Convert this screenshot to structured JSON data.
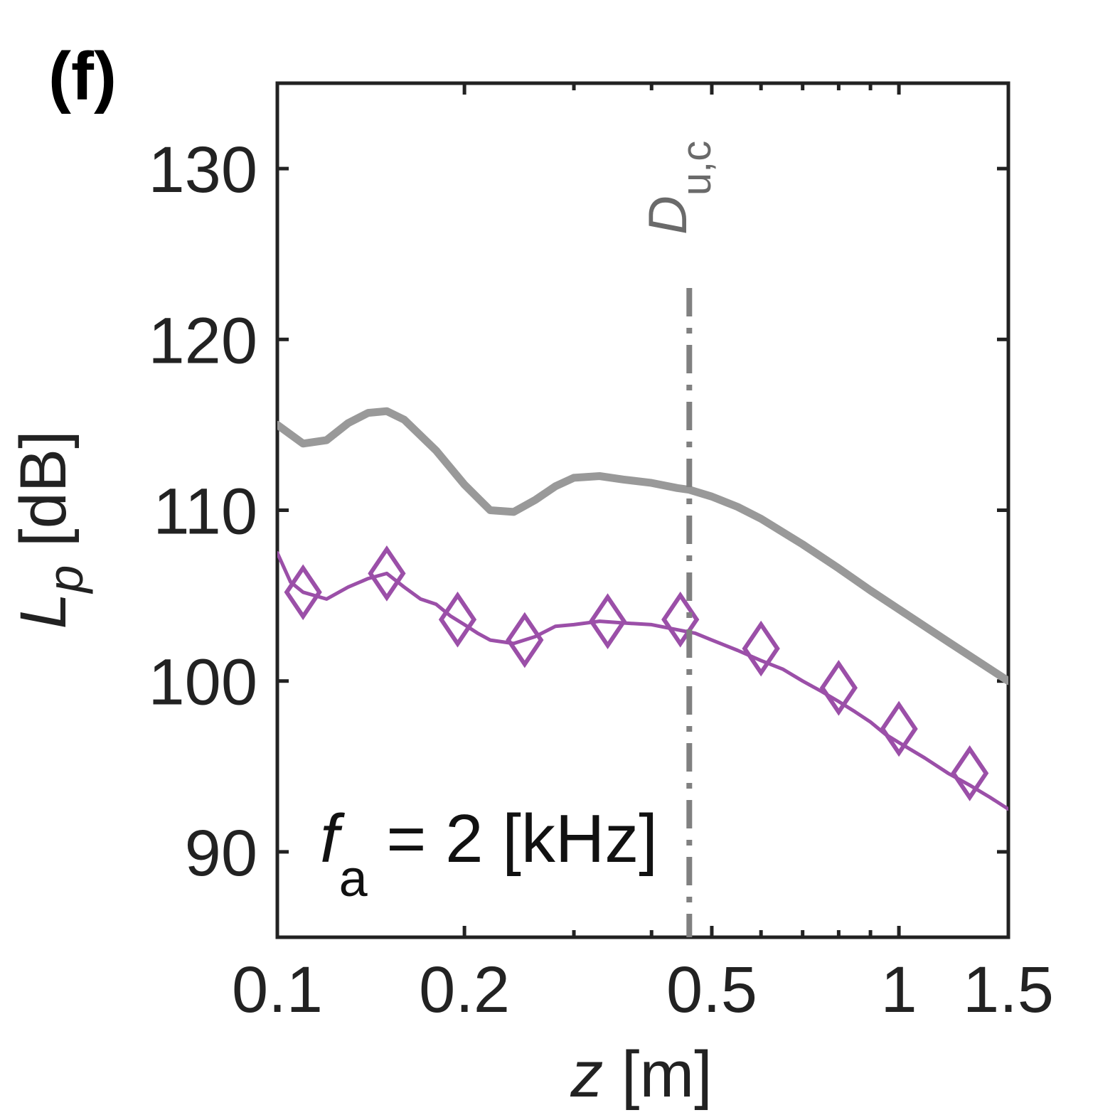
{
  "chart_data": {
    "type": "line",
    "panel_label": "(f)",
    "title": "",
    "xlabel": {
      "var": "z",
      "unit": "[m]"
    },
    "ylabel": {
      "var": "L",
      "sub": "p",
      "unit": "[dB]"
    },
    "xscale": "log",
    "xlim": [
      0.1,
      1.5
    ],
    "ylim": [
      85,
      135
    ],
    "xticks": [
      0.1,
      0.2,
      0.5,
      1,
      1.5
    ],
    "xtick_labels": [
      "0.1",
      "0.2",
      "0.5",
      "1",
      "1.5"
    ],
    "yticks": [
      90,
      100,
      110,
      120,
      130
    ],
    "ytick_labels": [
      "90",
      "100",
      "110",
      "120",
      "130"
    ],
    "minor_xticks": [
      0.3,
      0.4,
      0.6,
      0.7,
      0.8,
      0.9
    ],
    "annotation": {
      "var": "f",
      "sub": "a",
      "text": " = 2 [kHz]"
    },
    "vline": {
      "x": 0.46,
      "label_main": "D",
      "label_sub": "u,c",
      "color": "#808080",
      "style": "dash-dot"
    },
    "series": [
      {
        "name": "gray",
        "color": "#999999",
        "marker": "none",
        "x": [
          0.1,
          0.11,
          0.12,
          0.13,
          0.14,
          0.15,
          0.16,
          0.18,
          0.2,
          0.22,
          0.24,
          0.26,
          0.28,
          0.3,
          0.33,
          0.36,
          0.4,
          0.44,
          0.46,
          0.5,
          0.55,
          0.6,
          0.7,
          0.8,
          0.9,
          1.0,
          1.2,
          1.5
        ],
        "y": [
          115.0,
          113.9,
          114.1,
          115.1,
          115.7,
          115.8,
          115.3,
          113.5,
          111.5,
          110.0,
          109.9,
          110.6,
          111.4,
          111.9,
          112.0,
          111.8,
          111.6,
          111.3,
          111.2,
          110.8,
          110.2,
          109.5,
          108.0,
          106.6,
          105.3,
          104.2,
          102.3,
          100.0
        ]
      },
      {
        "name": "purple",
        "color": "#9b4fa8",
        "marker": "diamond",
        "x": [
          0.1,
          0.105,
          0.11,
          0.12,
          0.13,
          0.14,
          0.15,
          0.16,
          0.17,
          0.18,
          0.19,
          0.2,
          0.21,
          0.22,
          0.24,
          0.26,
          0.28,
          0.3,
          0.33,
          0.36,
          0.4,
          0.44,
          0.47,
          0.5,
          0.55,
          0.6,
          0.65,
          0.7,
          0.75,
          0.8,
          0.85,
          0.9,
          0.95,
          1.0,
          1.1,
          1.2,
          1.3,
          1.4,
          1.5
        ],
        "y": [
          107.5,
          105.8,
          105.2,
          104.8,
          105.5,
          106.0,
          106.3,
          105.5,
          104.8,
          104.5,
          103.8,
          103.3,
          102.8,
          102.4,
          102.2,
          102.6,
          103.2,
          103.3,
          103.5,
          103.4,
          103.3,
          103.0,
          102.8,
          102.4,
          101.8,
          101.2,
          100.7,
          100.0,
          99.4,
          98.8,
          98.2,
          97.6,
          96.9,
          96.4,
          95.5,
          94.6,
          93.9,
          93.2,
          92.5
        ],
        "markers": [
          {
            "x": 0.11,
            "y": 105.2
          },
          {
            "x": 0.15,
            "y": 106.3
          },
          {
            "x": 0.195,
            "y": 103.6
          },
          {
            "x": 0.25,
            "y": 102.4
          },
          {
            "x": 0.34,
            "y": 103.5
          },
          {
            "x": 0.445,
            "y": 103.6
          },
          {
            "x": 0.6,
            "y": 101.9
          },
          {
            "x": 0.8,
            "y": 99.6
          },
          {
            "x": 1.0,
            "y": 97.2
          },
          {
            "x": 1.3,
            "y": 94.6
          }
        ]
      }
    ]
  }
}
